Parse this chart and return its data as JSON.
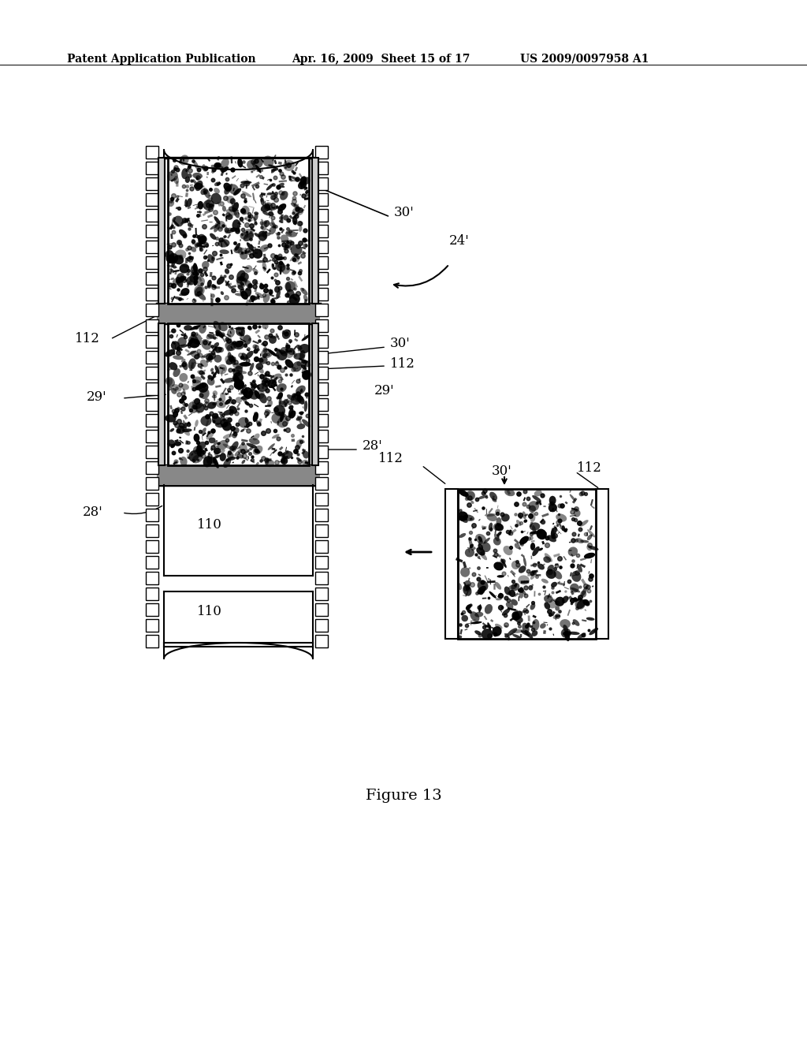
{
  "bg_color": "#ffffff",
  "header_text": "Patent Application Publication",
  "header_date": "Apr. 16, 2009  Sheet 15 of 17",
  "header_patent": "US 2009/0097958 A1",
  "figure_caption": "Figure 13",
  "labels": {
    "30p_top": "30'",
    "24p": "24'",
    "112_left": "112",
    "29p_left": "29'",
    "30p_mid": "30'",
    "112_right_mid": "112",
    "29p_right": "29'",
    "28p_right": "28'",
    "28p_left": "28'",
    "110_label1": "110",
    "110_label2": "110",
    "30p_small": "30'",
    "112_small_top": "112",
    "112_small_left": "112"
  }
}
